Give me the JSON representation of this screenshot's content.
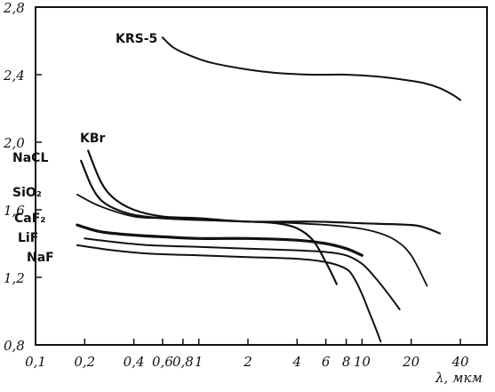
{
  "chart_data": {
    "type": "line",
    "title": "",
    "xlabel": "λ, мкм",
    "ylabel": "",
    "x_scale": "log",
    "xlim": [
      0.1,
      50
    ],
    "ylim": [
      0.8,
      2.8
    ],
    "grid": false,
    "x_ticks": [
      {
        "value": 0.1,
        "label": "0,1"
      },
      {
        "value": 0.2,
        "label": "0,2"
      },
      {
        "value": 0.4,
        "label": "0,4"
      },
      {
        "value": 0.6,
        "label": "0,6"
      },
      {
        "value": 0.8,
        "label": "0,8"
      },
      {
        "value": 1,
        "label": "1"
      },
      {
        "value": 2,
        "label": "2"
      },
      {
        "value": 4,
        "label": "4"
      },
      {
        "value": 6,
        "label": "6"
      },
      {
        "value": 8,
        "label": "8"
      },
      {
        "value": 10,
        "label": "10"
      },
      {
        "value": 20,
        "label": "20"
      },
      {
        "value": 40,
        "label": "40"
      }
    ],
    "y_ticks": [
      {
        "value": 0.8,
        "label": "0,8"
      },
      {
        "value": 1.2,
        "label": "1,2"
      },
      {
        "value": 1.6,
        "label": "1,6"
      },
      {
        "value": 2.0,
        "label": "2,0"
      },
      {
        "value": 2.4,
        "label": "2,4"
      },
      {
        "value": 2.8,
        "label": "2,8"
      }
    ],
    "series": [
      {
        "name": "KRS-5",
        "x": [
          0.6,
          0.7,
          0.9,
          1.2,
          2,
          3,
          5,
          8,
          12,
          18,
          24,
          30,
          36,
          40
        ],
        "y": [
          2.62,
          2.56,
          2.51,
          2.47,
          2.43,
          2.41,
          2.4,
          2.4,
          2.39,
          2.37,
          2.35,
          2.32,
          2.28,
          2.25
        ]
      },
      {
        "name": "KBr",
        "x": [
          0.21,
          0.25,
          0.3,
          0.4,
          0.6,
          1,
          2,
          5,
          10,
          20,
          25,
          30
        ],
        "y": [
          1.95,
          1.77,
          1.67,
          1.6,
          1.56,
          1.55,
          1.53,
          1.53,
          1.52,
          1.51,
          1.49,
          1.46
        ]
      },
      {
        "name": "NaCL",
        "x": [
          0.19,
          0.22,
          0.25,
          0.3,
          0.4,
          0.6,
          1,
          2,
          3,
          4,
          5,
          6,
          7
        ],
        "y": [
          1.89,
          1.74,
          1.66,
          1.61,
          1.57,
          1.55,
          1.54,
          1.53,
          1.52,
          1.49,
          1.42,
          1.29,
          1.16
        ]
      },
      {
        "name": "SiO₂",
        "x": [
          0.18,
          0.25,
          0.4,
          0.6,
          1,
          2,
          4,
          8,
          12,
          16,
          20,
          25
        ],
        "y": [
          1.69,
          1.62,
          1.56,
          1.55,
          1.54,
          1.53,
          1.52,
          1.5,
          1.47,
          1.42,
          1.33,
          1.15
        ]
      },
      {
        "name": "CaF₂",
        "x": [
          0.18,
          0.25,
          0.4,
          0.6,
          1,
          2,
          4,
          6,
          8,
          10
        ],
        "y": [
          1.51,
          1.47,
          1.45,
          1.44,
          1.43,
          1.43,
          1.42,
          1.4,
          1.37,
          1.33
        ]
      },
      {
        "name": "LiF",
        "x": [
          0.2,
          0.3,
          0.5,
          1,
          2,
          4,
          6,
          8,
          10,
          12,
          14,
          17
        ],
        "y": [
          1.43,
          1.41,
          1.39,
          1.38,
          1.37,
          1.36,
          1.35,
          1.33,
          1.28,
          1.2,
          1.12,
          1.01
        ]
      },
      {
        "name": "NaF",
        "x": [
          0.18,
          0.3,
          0.5,
          1,
          2,
          4,
          6,
          8,
          9,
          10,
          11,
          12,
          13
        ],
        "y": [
          1.39,
          1.36,
          1.34,
          1.33,
          1.32,
          1.31,
          1.29,
          1.25,
          1.19,
          1.1,
          1.0,
          0.91,
          0.82
        ]
      }
    ]
  }
}
